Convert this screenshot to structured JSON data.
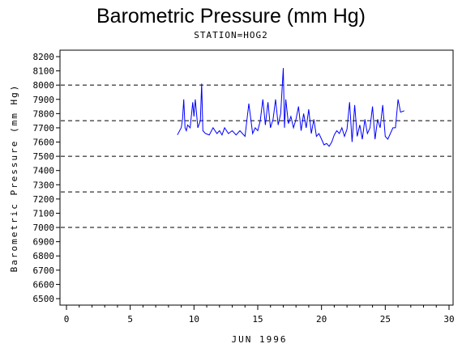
{
  "chart_data": {
    "type": "line",
    "title": "Barometric Pressure (mm Hg)",
    "subtitle": "STATION=HOG2",
    "xlabel": "JUN 1996",
    "ylabel": "Barometric Pressure (mm Hg)",
    "xlim": [
      0,
      30
    ],
    "ylim": [
      6500,
      8200
    ],
    "x_ticks": [
      0,
      5,
      10,
      15,
      20,
      25,
      30
    ],
    "y_ticks": [
      6500,
      6600,
      6700,
      6800,
      6900,
      7000,
      7100,
      7200,
      7300,
      7400,
      7500,
      7600,
      7700,
      7800,
      7900,
      8000,
      8100,
      8200
    ],
    "reference_lines": [
      7000,
      7250,
      7500,
      7750,
      8000
    ],
    "line_color": "#0000ff",
    "series": [
      {
        "x": [
          8.7,
          9.0,
          9.1,
          9.2,
          9.3,
          9.4,
          9.5,
          9.7,
          9.9,
          10.0,
          10.1,
          10.3,
          10.5,
          10.6,
          10.7,
          10.9,
          11.2,
          11.5,
          11.8,
          12.0,
          12.2,
          12.4,
          12.7,
          13.0,
          13.3,
          13.6,
          13.8,
          14.0,
          14.3,
          14.6,
          14.8,
          15.0,
          15.2,
          15.4,
          15.6,
          15.8,
          16.0,
          16.2,
          16.4,
          16.6,
          16.8,
          17.0,
          17.1,
          17.2,
          17.4,
          17.6,
          17.8,
          18.0,
          18.2,
          18.4,
          18.6,
          18.8,
          19.0,
          19.2,
          19.4,
          19.6,
          19.8,
          20.0,
          20.2,
          20.4,
          20.6,
          20.8,
          21.0,
          21.2,
          21.4,
          21.6,
          21.8,
          22.0,
          22.2,
          22.4,
          22.6,
          22.8,
          23.0,
          23.2,
          23.4,
          23.6,
          23.8,
          24.0,
          24.2,
          24.4,
          24.6,
          24.8,
          25.0,
          25.2,
          25.4,
          25.6,
          25.8,
          26.0,
          26.2,
          26.5
        ],
        "y": [
          7650,
          7700,
          7760,
          7900,
          7700,
          7680,
          7720,
          7700,
          7880,
          7780,
          7900,
          7700,
          7750,
          8010,
          7680,
          7660,
          7650,
          7700,
          7660,
          7680,
          7650,
          7700,
          7660,
          7680,
          7650,
          7680,
          7660,
          7640,
          7870,
          7660,
          7700,
          7680,
          7750,
          7900,
          7720,
          7880,
          7700,
          7760,
          7900,
          7720,
          7800,
          8120,
          7700,
          7900,
          7730,
          7780,
          7700,
          7760,
          7850,
          7680,
          7800,
          7700,
          7830,
          7660,
          7760,
          7640,
          7660,
          7620,
          7580,
          7590,
          7570,
          7600,
          7650,
          7680,
          7660,
          7700,
          7640,
          7690,
          7880,
          7600,
          7860,
          7640,
          7720,
          7620,
          7760,
          7660,
          7700,
          7850,
          7620,
          7760,
          7700,
          7860,
          7640,
          7620,
          7660,
          7700,
          7700,
          7900,
          7810,
          7820
        ]
      }
    ]
  }
}
